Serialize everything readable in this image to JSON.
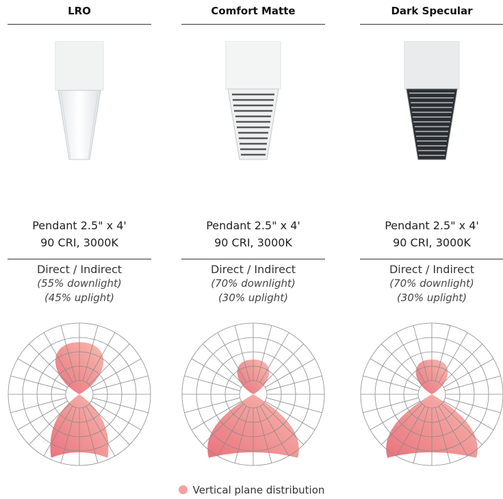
{
  "columns": [
    {
      "name": "LRO",
      "spec_line1": "Pendant 2.5\" x 4'",
      "spec_line2": "90 CRI, 3000K",
      "distribution": "Direct / Indirect",
      "downlight": "(55% downlight)",
      "uplight": "(45% uplight)",
      "finish": "lens",
      "downlight_pct": 55,
      "uplight_pct": 45
    },
    {
      "name": "Comfort Matte",
      "spec_line1": "Pendant 2.5\" x 4'",
      "spec_line2": "90 CRI, 3000K",
      "distribution": "Direct / Indirect",
      "downlight": "(70% downlight)",
      "uplight": "(30% uplight)",
      "finish": "matte-louver",
      "downlight_pct": 70,
      "uplight_pct": 30
    },
    {
      "name": "Dark Specular",
      "spec_line1": "Pendant 2.5\" x 4'",
      "spec_line2": "90 CRI, 3000K",
      "distribution": "Direct / Indirect",
      "downlight": "(70% downlight)",
      "uplight": "(30% uplight)",
      "finish": "dark-louver",
      "downlight_pct": 70,
      "uplight_pct": 30
    }
  ],
  "legend": {
    "label": "Vertical plane distribution",
    "color": "#f4a1a1"
  },
  "colors": {
    "distribution_light": "#f7b3a8",
    "distribution_dark": "#e8636e",
    "grid": "#8a8a8a"
  }
}
